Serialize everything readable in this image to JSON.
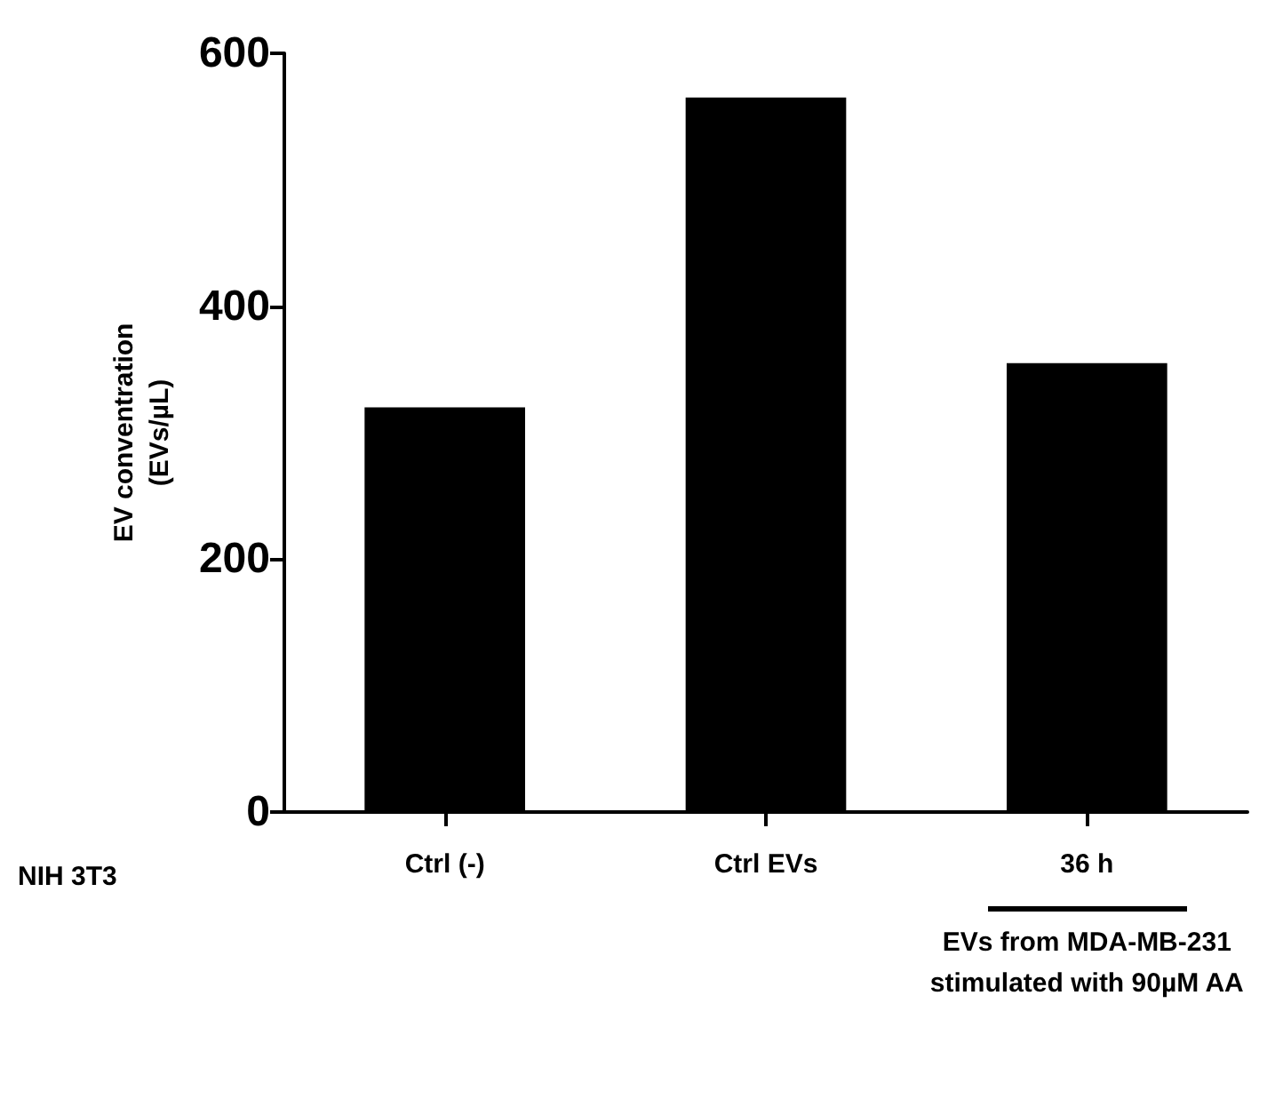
{
  "chart_data": {
    "type": "bar",
    "ylabel": "EV conventration\n(EVs/µL)",
    "categories": [
      "Ctrl (-)",
      "Ctrl EVs",
      "36 h"
    ],
    "values": [
      320,
      565,
      355
    ],
    "color": "#000000",
    "ylim": [
      0,
      600
    ],
    "yticks": [
      0,
      200,
      400,
      600
    ],
    "grid": false,
    "annotations": [
      "NIH 3T3",
      "EVs from MDA-MB-231 stimulated with 90µM AA"
    ]
  }
}
